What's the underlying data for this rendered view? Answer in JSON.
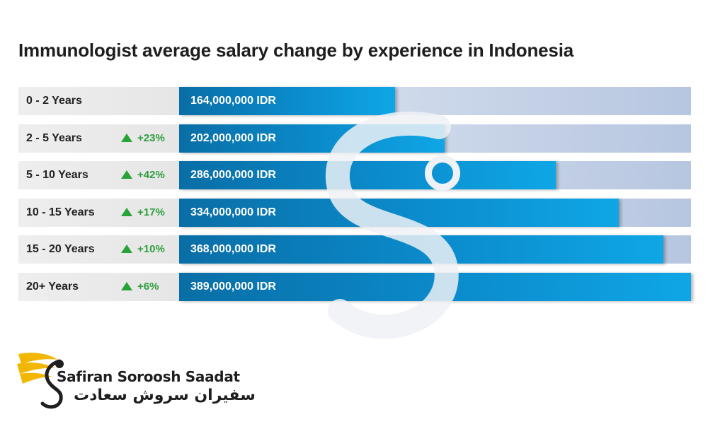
{
  "chart_data": {
    "type": "bar",
    "orientation": "horizontal",
    "title": "Immunologist average salary change by experience in Indonesia",
    "categories": [
      "0 - 2 Years",
      "2 - 5 Years",
      "5 - 10 Years",
      "10 - 15 Years",
      "15 - 20 Years",
      "20+ Years"
    ],
    "values": [
      164000000,
      202000000,
      286000000,
      334000000,
      368000000,
      389000000
    ],
    "value_labels": [
      "164,000,000 IDR",
      "202,000,000 IDR",
      "286,000,000 IDR",
      "334,000,000 IDR",
      "368,000,000 IDR",
      "389,000,000 IDR"
    ],
    "changes": [
      "",
      "+23%",
      "+42%",
      "+17%",
      "+10%",
      "+6%"
    ],
    "unit": "IDR",
    "xlim": [
      0,
      389000000
    ],
    "grid": false,
    "colors": {
      "bar": "#0b8ccd",
      "track": "#c9d5e8",
      "increase": "#27a337"
    }
  },
  "branding": {
    "name_latin": "Safiran Soroosh Saadat",
    "name_persian": "سفیران سروش سعادت",
    "logo_colors": [
      "#f2b705",
      "#1f1f1f"
    ]
  }
}
